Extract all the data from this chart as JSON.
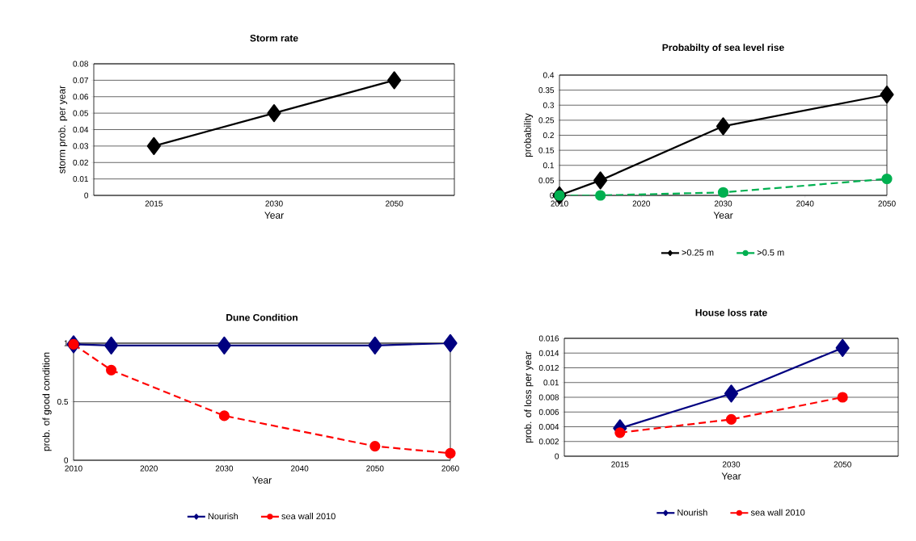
{
  "chart_data": [
    {
      "type": "line",
      "title": "Storm rate",
      "xlabel": "Year",
      "ylabel": "storm prob. per year",
      "categories": [
        "2015",
        "2030",
        "2050"
      ],
      "series": [
        {
          "color": "#000000",
          "values": [
            0.03,
            0.05,
            0.07
          ],
          "marker": "diamond",
          "line_style": "solid"
        }
      ],
      "ylim": [
        0,
        0.08
      ],
      "yticks": [
        0,
        0.01,
        0.02,
        0.03,
        0.04,
        0.05,
        0.06,
        0.07,
        0.08
      ],
      "grid": "y",
      "legend": false
    },
    {
      "type": "line",
      "title": "Probabilty of sea level rise",
      "xlabel": "Year",
      "ylabel": "probability",
      "x": [
        2010,
        2015,
        2030,
        2050
      ],
      "series": [
        {
          "name": ">0.25 m",
          "color": "#000000",
          "values": [
            0,
            0.05,
            0.23,
            0.335
          ],
          "marker": "diamond",
          "line_style": "solid"
        },
        {
          "name": ">0.5 m",
          "color": "#00b050",
          "values": [
            0,
            0,
            0.01,
            0.055
          ],
          "marker": "circle",
          "line_style": "dashed"
        }
      ],
      "xlim": [
        2010,
        2050
      ],
      "xticks": [
        2010,
        2020,
        2030,
        2040,
        2050
      ],
      "ylim": [
        0,
        0.4
      ],
      "yticks": [
        0,
        0.05,
        0.1,
        0.15,
        0.2,
        0.25,
        0.3,
        0.35,
        0.4
      ],
      "grid": "y",
      "legend": "bottom"
    },
    {
      "type": "line",
      "title": "Dune Condition",
      "xlabel": "Year",
      "ylabel": "prob. of good condition",
      "x": [
        2010,
        2015,
        2030,
        2050,
        2060
      ],
      "series": [
        {
          "name": "Nourish",
          "color": "#000080",
          "values": [
            0.99,
            0.98,
            0.98,
            0.98,
            1.0
          ],
          "marker": "diamond",
          "line_style": "solid"
        },
        {
          "name": "sea wall 2010",
          "color": "#ff0000",
          "values": [
            0.99,
            0.77,
            0.38,
            0.12,
            0.06
          ],
          "marker": "circle",
          "line_style": "dashed"
        }
      ],
      "xlim": [
        2010,
        2060
      ],
      "xticks": [
        2010,
        2020,
        2030,
        2040,
        2050,
        2060
      ],
      "ylim": [
        0,
        1
      ],
      "yticks": [
        0,
        0.5,
        1
      ],
      "grid": "y",
      "legend": "bottom"
    },
    {
      "type": "line",
      "title": "House loss rate",
      "xlabel": "Year",
      "ylabel": "prob. of loss per year",
      "categories": [
        "2015",
        "2030",
        "2050"
      ],
      "series": [
        {
          "name": "Nourish",
          "color": "#000080",
          "values": [
            0.0038,
            0.0085,
            0.0147
          ],
          "marker": "diamond",
          "line_style": "solid"
        },
        {
          "name": "sea wall 2010",
          "color": "#ff0000",
          "values": [
            0.0032,
            0.005,
            0.008
          ],
          "marker": "circle",
          "line_style": "dashed"
        }
      ],
      "ylim": [
        0,
        0.016
      ],
      "yticks": [
        0,
        0.002,
        0.004,
        0.006,
        0.008,
        0.01,
        0.012,
        0.014,
        0.016
      ],
      "grid": "y",
      "legend": "bottom"
    }
  ]
}
